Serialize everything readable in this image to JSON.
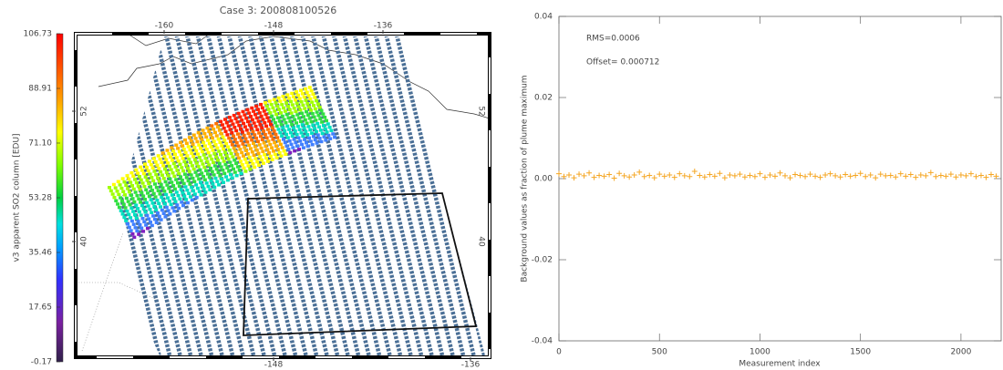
{
  "chart_data": [
    {
      "type": "map",
      "title": "Case 3: 200808100526",
      "colorbar_label": "v3 apparent SO2 column [EDU]",
      "clim": [
        -0.17,
        106.73
      ],
      "cticks": [
        -0.17,
        17.65,
        35.46,
        53.28,
        {
          "value": 71.1,
          "label": "71.10"
        },
        88.91,
        106.73
      ],
      "xlim": [
        -169.7,
        -124.3
      ],
      "xticks": [
        -160,
        -148,
        -136
      ],
      "xticks_bottom": [
        -148,
        -136
      ],
      "ylim": [
        29.35,
        59.13
      ],
      "yticks": [
        40,
        52
      ]
    },
    {
      "type": "scatter",
      "ylabel": "Background values as fraction of plume maximum",
      "xlabel": "Measurement index",
      "annotations": [
        "RMS=0.0006",
        "Offset= 0.000712"
      ],
      "color": "#f5a623",
      "xlim": [
        0,
        2200
      ],
      "xticks": [
        0,
        500,
        1000,
        1500,
        2000
      ],
      "ylim": [
        -0.04,
        0.04
      ],
      "yticks": [
        -0.04,
        -0.02,
        {
          "value": 0,
          "label": "0.00"
        },
        0.02,
        0.04
      ],
      "x": [
        0,
        25,
        50,
        75,
        100,
        125,
        150,
        175,
        200,
        225,
        250,
        275,
        300,
        325,
        350,
        375,
        400,
        425,
        450,
        475,
        500,
        525,
        550,
        575,
        600,
        625,
        650,
        675,
        700,
        725,
        750,
        775,
        800,
        825,
        850,
        875,
        900,
        925,
        950,
        975,
        1000,
        1025,
        1050,
        1075,
        1100,
        1125,
        1150,
        1175,
        1200,
        1225,
        1250,
        1275,
        1300,
        1325,
        1350,
        1375,
        1400,
        1425,
        1450,
        1475,
        1500,
        1525,
        1550,
        1575,
        1600,
        1625,
        1650,
        1675,
        1700,
        1725,
        1750,
        1775,
        1800,
        1825,
        1850,
        1875,
        1900,
        1925,
        1950,
        1975,
        2000,
        2025,
        2050,
        2075,
        2100,
        2125,
        2150,
        2175
      ],
      "values": [
        0.0012,
        0.0005,
        0.0009,
        0.0002,
        0.0011,
        0.0007,
        0.0014,
        0.0003,
        0.0008,
        0.0006,
        0.001,
        0.0001,
        0.0013,
        0.0007,
        0.0004,
        0.0009,
        0.0016,
        0.0005,
        0.0008,
        0.0002,
        0.0011,
        0.0006,
        0.0009,
        0.0003,
        0.0012,
        0.0007,
        0.0005,
        0.0018,
        0.0008,
        0.0004,
        0.001,
        0.0006,
        0.0013,
        0.0002,
        0.0009,
        0.0007,
        0.0011,
        0.0004,
        0.0008,
        0.0005,
        0.0012,
        0.0003,
        0.0009,
        0.0006,
        0.0014,
        0.0007,
        0.0002,
        0.001,
        0.0008,
        0.0005,
        0.0011,
        0.0006,
        0.0003,
        0.0009,
        0.0012,
        0.0007,
        0.0004,
        0.001,
        0.0006,
        0.0008,
        0.0013,
        0.0005,
        0.0009,
        0.0002,
        0.0011,
        0.0007,
        0.0008,
        0.0004,
        0.0012,
        0.0006,
        0.001,
        0.0003,
        0.0009,
        0.0007,
        0.0015,
        0.0005,
        0.0008,
        0.0006,
        0.0011,
        0.0004,
        0.0009,
        0.0007,
        0.0012,
        0.0005,
        0.0008,
        0.0003,
        0.001,
        0.0006
      ]
    }
  ]
}
